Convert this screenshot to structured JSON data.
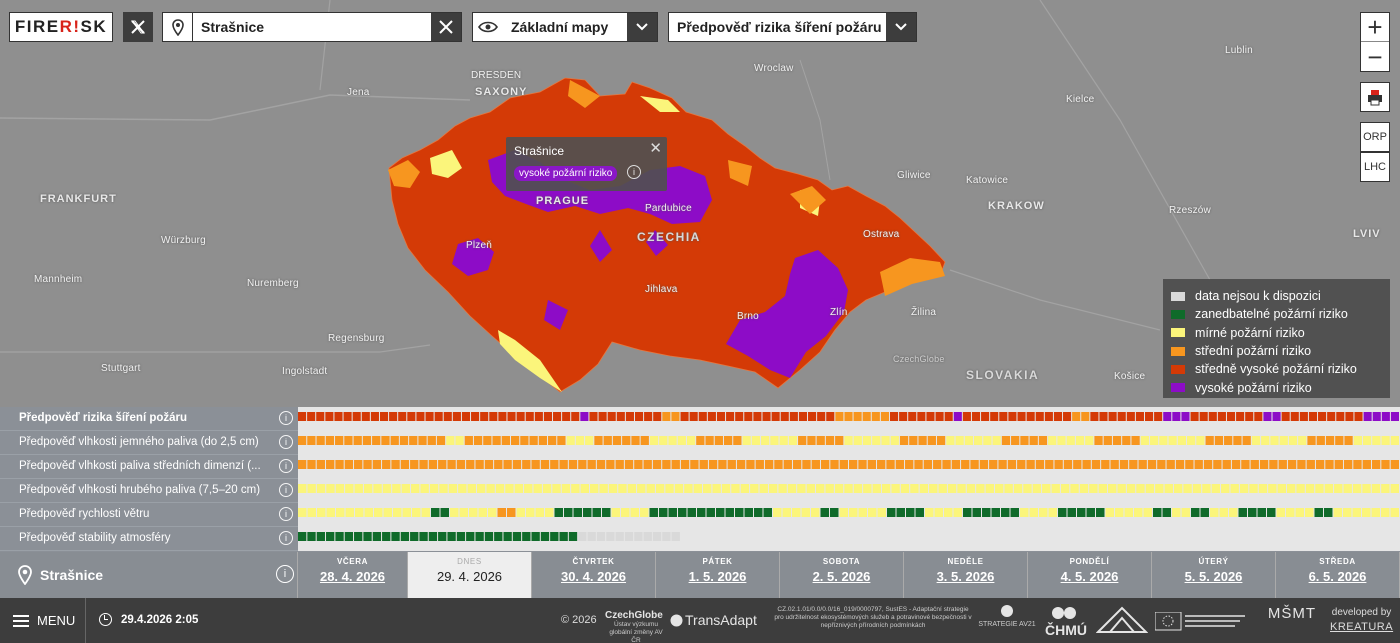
{
  "app": {
    "logo_part1": "FIRE",
    "logo_part2": "R!",
    "logo_part3": "SK"
  },
  "search": {
    "value": "Strašnice",
    "placeholder": ""
  },
  "basemap": {
    "label": "Základní mapy"
  },
  "layer": {
    "label": "Předpověď rizika šíření požáru"
  },
  "side_buttons": {
    "orp": "ORP",
    "lhc": "LHC"
  },
  "map_labels": {
    "dresden": "DRESDEN",
    "saxony": "SAXONY",
    "jena": "Jena",
    "wroclaw": "Wroclaw",
    "lublin": "Lublin",
    "kielce": "Kielce",
    "frankfurt": "FRANKFURT",
    "wurzburg": "Würzburg",
    "mannheim": "Mannheim",
    "nuremberg": "Nuremberg",
    "regensburg": "Regensburg",
    "stuttgart": "Stuttgart",
    "ingolstadt": "Ingolstadt",
    "gliwice": "Gliwice",
    "katowice": "Katowice",
    "krakow": "KRAKOW",
    "rzeszow": "Rzeszów",
    "lviv": "LVIV",
    "prague": "PRAGUE",
    "pardubice": "Pardubice",
    "czechia": "CZECHIA",
    "plzen": "Plzeň",
    "jihlava": "Jihlava",
    "ostrava": "Ostrava",
    "brno": "Brno",
    "zlin": "Zlín",
    "zilina": "Žilina",
    "slovakia": "SLOVAKIA",
    "kosice": "Košice",
    "czechglobe": "CzechGlobe"
  },
  "popup": {
    "title": "Strašnice",
    "risk": "vysoké požární riziko"
  },
  "legend": [
    {
      "label": "data nejsou k dispozici",
      "color": "#d9d9d9"
    },
    {
      "label": "zanedbatelné požární riziko",
      "color": "#0f6b2a"
    },
    {
      "label": "mírné požární riziko",
      "color": "#fbf57b"
    },
    {
      "label": "střední požární riziko",
      "color": "#f7961f"
    },
    {
      "label": "středně vysoké požární riziko",
      "color": "#d43a06"
    },
    {
      "label": "vysoké požární riziko",
      "color": "#8d0cc7"
    }
  ],
  "forecast_rows": [
    {
      "label": "Předpověď rizika šíření požáru",
      "bold": true
    },
    {
      "label": "Předpověď vlhkosti jemného paliva (do 2,5 cm)",
      "bold": false
    },
    {
      "label": "Předpověď vlhkosti paliva středních dimenzí (...",
      "bold": false
    },
    {
      "label": "Předpověď vlhkosti hrubého paliva (7,5–20 cm)",
      "bold": false
    },
    {
      "label": "Předpověď rychlosti větru",
      "bold": false
    },
    {
      "label": "Předpověď stability atmosféry",
      "bold": false
    }
  ],
  "location": {
    "name": "Strašnice"
  },
  "days": [
    {
      "name": "VČERA",
      "date": "28. 4. 2026"
    },
    {
      "name": "DNES",
      "date": "29. 4. 2026"
    },
    {
      "name": "ČTVRTEK",
      "date": "30. 4. 2026"
    },
    {
      "name": "PÁTEK",
      "date": "1. 5. 2026"
    },
    {
      "name": "SOBOTA",
      "date": "2. 5. 2026"
    },
    {
      "name": "NEDĚLE",
      "date": "3. 5. 2026"
    },
    {
      "name": "PONDĚLÍ",
      "date": "4. 5. 2026"
    },
    {
      "name": "ÚTERÝ",
      "date": "5. 5. 2026"
    },
    {
      "name": "STŘEDA",
      "date": "6. 5. 2026"
    }
  ],
  "footer": {
    "menu": "MENU",
    "datetime": "29.4.2026 2:05",
    "copyright": "© 2026",
    "czechglobe": "CzechGlobe",
    "czechglobe_sub": "Ústav výzkumu globální změny AV ČR",
    "transadapt": "TransAdapt",
    "project_text": "CZ.02.1.01/0.0/0.0/16_019/0000797, SustES - Adaptační strategie pro udržitelnost ekosystémových služeb a potravinové bezpečnosti v nepříznivých přírodních podmínkách",
    "strategie": "STRATEGIE AV21",
    "chmu": "ČHMÚ",
    "msmt": "MŠMT",
    "developed_by": "developed by",
    "kreatura": "KREATURA"
  }
}
